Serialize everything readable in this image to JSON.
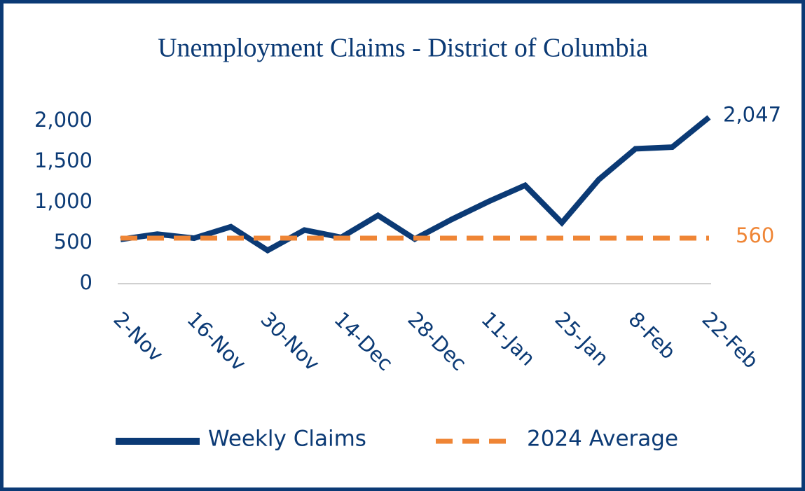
{
  "chart_data": {
    "type": "line",
    "title": "Unemployment Claims - District of Columbia",
    "categories": [
      "2-Nov",
      null,
      "16-Nov",
      null,
      "30-Nov",
      null,
      "14-Dec",
      null,
      "28-Dec",
      null,
      "11-Jan",
      null,
      "25-Jan",
      null,
      "8-Feb",
      null,
      "22-Feb"
    ],
    "series": [
      {
        "name": "Weekly Claims",
        "color": "#0b3a75",
        "style": "solid",
        "values": [
          545,
          610,
          560,
          700,
          410,
          660,
          570,
          840,
          550,
          790,
          1010,
          1210,
          750,
          1280,
          1660,
          1680,
          2047
        ],
        "value_labels": [
          null,
          null,
          null,
          null,
          null,
          null,
          null,
          null,
          null,
          null,
          null,
          null,
          null,
          null,
          null,
          null,
          "2,047"
        ]
      },
      {
        "name": "2024 Average",
        "color": "#ef8535",
        "style": "dashed",
        "values": [
          560,
          560,
          560,
          560,
          560,
          560,
          560,
          560,
          560,
          560,
          560,
          560,
          560,
          560,
          560,
          560,
          560
        ],
        "value_labels": [
          null,
          null,
          null,
          null,
          null,
          null,
          null,
          null,
          null,
          null,
          null,
          null,
          null,
          null,
          null,
          null,
          "560"
        ]
      }
    ],
    "ylim": [
      0,
      2000
    ],
    "yticks": [
      0,
      500,
      {
        "value": 1000,
        "label": "1,000"
      },
      {
        "value": 1500,
        "label": "1,500"
      },
      {
        "value": 2000,
        "label": "2,000"
      }
    ],
    "grid": false,
    "legend": "bottom"
  }
}
